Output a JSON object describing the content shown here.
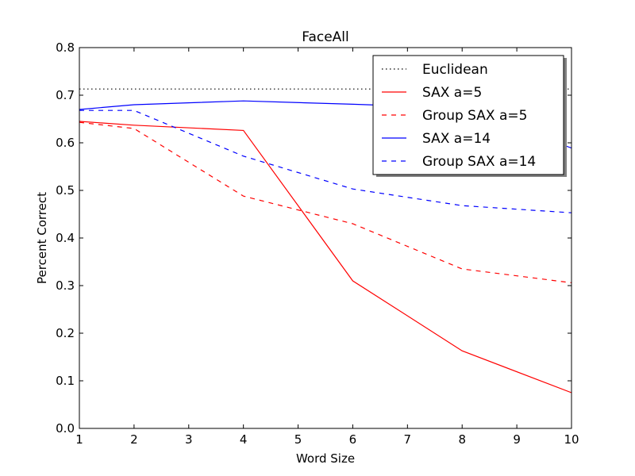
{
  "chart_data": {
    "type": "line",
    "title": "FaceAll",
    "xlabel": "Word Size",
    "ylabel": "Percent Correct",
    "xlim": [
      1,
      10
    ],
    "ylim": [
      0,
      0.8
    ],
    "xticks": [
      1,
      2,
      3,
      4,
      5,
      6,
      7,
      8,
      9,
      10
    ],
    "yticks": [
      "0.0",
      "0.1",
      "0.2",
      "0.3",
      "0.4",
      "0.5",
      "0.6",
      "0.7",
      "0.8"
    ],
    "grid": false,
    "legend_position": "top-right",
    "series": [
      {
        "name": "Euclidean",
        "color": "#000000",
        "style": "dotted",
        "x": [
          1,
          10
        ],
        "y": [
          0.713,
          0.713
        ]
      },
      {
        "name": "SAX a=5",
        "color": "#ff0000",
        "style": "solid",
        "x": [
          1,
          2,
          4,
          6,
          8,
          10
        ],
        "y": [
          0.645,
          0.637,
          0.626,
          0.31,
          0.163,
          0.075
        ]
      },
      {
        "name": "Group SAX a=5",
        "color": "#ff0000",
        "style": "dashed",
        "x": [
          1,
          2,
          4,
          6,
          8,
          10
        ],
        "y": [
          0.643,
          0.63,
          0.488,
          0.43,
          0.335,
          0.306
        ]
      },
      {
        "name": "SAX a=14",
        "color": "#0000ff",
        "style": "solid",
        "x": [
          1,
          2,
          4,
          6,
          8,
          10
        ],
        "y": [
          0.67,
          0.68,
          0.688,
          0.681,
          0.673,
          0.589
        ]
      },
      {
        "name": "Group SAX a=14",
        "color": "#0000ff",
        "style": "dashed",
        "x": [
          1,
          2,
          4,
          6,
          8,
          10
        ],
        "y": [
          0.668,
          0.668,
          0.572,
          0.503,
          0.468,
          0.453
        ]
      }
    ]
  }
}
